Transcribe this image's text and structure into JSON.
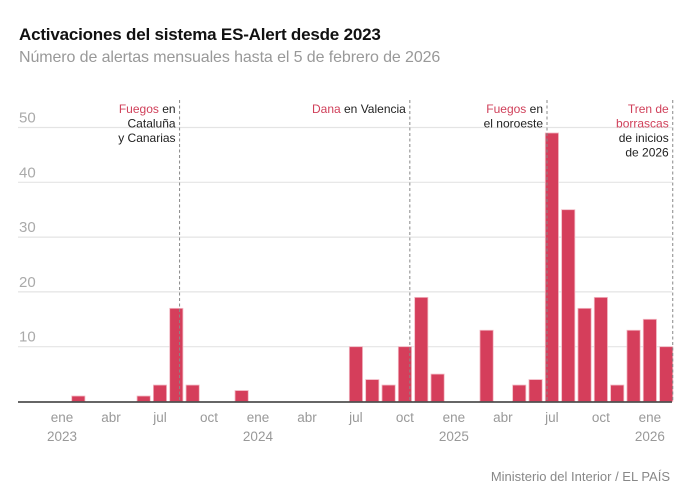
{
  "header": {
    "title": "Activaciones del sistema ES-Alert desde 2023",
    "subtitle": "Número de alertas mensuales hasta el 5 de febrero de 2026"
  },
  "footer": {
    "source": "Ministerio del Interior / EL PAÍS"
  },
  "colors": {
    "bar": "#d53e5b",
    "highlight": "#d0405a",
    "grid": "#e4e4e4",
    "axis": "#333333"
  },
  "chart_data": {
    "type": "bar",
    "title": "Activaciones del sistema ES-Alert desde 2023",
    "subtitle": "Número de alertas mensuales hasta el 5 de febrero de 2026",
    "xlabel": "",
    "ylabel": "",
    "ylim": [
      0,
      50
    ],
    "yticks": [
      10,
      20,
      30,
      40,
      50
    ],
    "grid": true,
    "categories": [
      "2023-01",
      "2023-02",
      "2023-03",
      "2023-04",
      "2023-05",
      "2023-06",
      "2023-07",
      "2023-08",
      "2023-09",
      "2023-10",
      "2023-11",
      "2023-12",
      "2024-01",
      "2024-02",
      "2024-03",
      "2024-04",
      "2024-05",
      "2024-06",
      "2024-07",
      "2024-08",
      "2024-09",
      "2024-10",
      "2024-11",
      "2024-12",
      "2025-01",
      "2025-02",
      "2025-03",
      "2025-04",
      "2025-05",
      "2025-06",
      "2025-07",
      "2025-08",
      "2025-09",
      "2025-10",
      "2025-11",
      "2025-12",
      "2026-01",
      "2026-02"
    ],
    "values": [
      0,
      1,
      0,
      0,
      0,
      1,
      3,
      17,
      3,
      0,
      0,
      2,
      0,
      0,
      0,
      0,
      0,
      0,
      10,
      4,
      3,
      10,
      19,
      5,
      0,
      0,
      13,
      0,
      3,
      4,
      49,
      35,
      17,
      19,
      3,
      13,
      15,
      10
    ],
    "xticks": [
      {
        "index": 0,
        "month": "ene",
        "year": "2023"
      },
      {
        "index": 3,
        "month": "abr",
        "year": ""
      },
      {
        "index": 6,
        "month": "jul",
        "year": ""
      },
      {
        "index": 9,
        "month": "oct",
        "year": ""
      },
      {
        "index": 12,
        "month": "ene",
        "year": "2024"
      },
      {
        "index": 15,
        "month": "abr",
        "year": ""
      },
      {
        "index": 18,
        "month": "jul",
        "year": ""
      },
      {
        "index": 21,
        "month": "oct",
        "year": ""
      },
      {
        "index": 24,
        "month": "ene",
        "year": "2025"
      },
      {
        "index": 27,
        "month": "abr",
        "year": ""
      },
      {
        "index": 30,
        "month": "jul",
        "year": ""
      },
      {
        "index": 33,
        "month": "oct",
        "year": ""
      },
      {
        "index": 36,
        "month": "ene",
        "year": "2026"
      }
    ],
    "annotations": [
      {
        "position": 7.2,
        "lines": [
          [
            {
              "t": "Fuegos",
              "hl": true
            },
            {
              "t": " en",
              "hl": false
            }
          ],
          [
            {
              "t": "Cataluña",
              "hl": false
            }
          ],
          [
            {
              "t": "y Canarias",
              "hl": false
            }
          ]
        ]
      },
      {
        "position": 21.3,
        "lines": [
          [
            {
              "t": "Dana",
              "hl": true
            },
            {
              "t": " en Valencia",
              "hl": false
            }
          ]
        ]
      },
      {
        "position": 29.7,
        "lines": [
          [
            {
              "t": "Fuegos",
              "hl": true
            },
            {
              "t": " en",
              "hl": false
            }
          ],
          [
            {
              "t": "el noroeste",
              "hl": false
            }
          ]
        ]
      },
      {
        "position": 37.4,
        "lines": [
          [
            {
              "t": "Tren de",
              "hl": true
            }
          ],
          [
            {
              "t": "borrascas",
              "hl": true
            }
          ],
          [
            {
              "t": "de inicios",
              "hl": false
            }
          ],
          [
            {
              "t": "de 2026",
              "hl": false
            }
          ]
        ]
      }
    ]
  }
}
